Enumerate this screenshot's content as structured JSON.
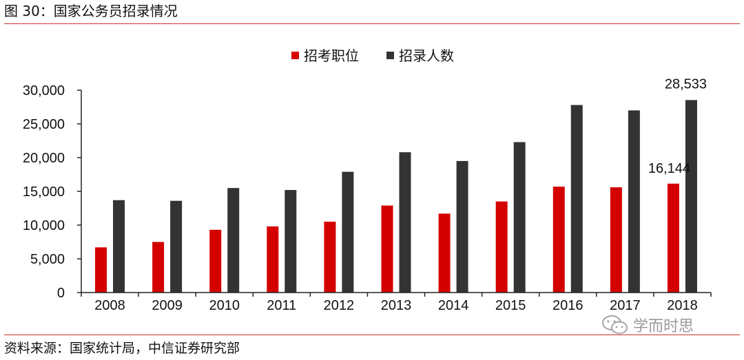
{
  "figure_title": "图 30：国家公务员招录情况",
  "source": "资料来源：国家统计局，中信证券研究部",
  "watermark": "学而时思",
  "colors": {
    "series1": "#d40000",
    "series2": "#333333",
    "rule": "#c9302c",
    "axis": "#222222"
  },
  "chart_data": {
    "type": "bar",
    "title": "",
    "xlabel": "",
    "ylabel": "",
    "categories": [
      "2008",
      "2009",
      "2010",
      "2011",
      "2012",
      "2013",
      "2014",
      "2015",
      "2016",
      "2017",
      "2018"
    ],
    "series": [
      {
        "name": "招考职位",
        "color": "#d40000",
        "values": [
          6700,
          7500,
          9300,
          9800,
          10500,
          12900,
          11700,
          13500,
          15700,
          15600,
          16144
        ]
      },
      {
        "name": "招录人数",
        "color": "#333333",
        "values": [
          13700,
          13600,
          15500,
          15200,
          17900,
          20800,
          19500,
          22300,
          27800,
          27000,
          28533
        ]
      }
    ],
    "ylim": [
      0,
      30000
    ],
    "yticks": [
      0,
      5000,
      10000,
      15000,
      20000,
      25000,
      30000
    ],
    "ytick_labels": [
      "0",
      "5,000",
      "10,000",
      "15,000",
      "20,000",
      "25,000",
      "30,000"
    ],
    "annotations": [
      {
        "series": 0,
        "category": "2018",
        "text": "16,144"
      },
      {
        "series": 1,
        "category": "2018",
        "text": "28,533"
      }
    ],
    "legend_position": "top-center",
    "grid": false
  }
}
